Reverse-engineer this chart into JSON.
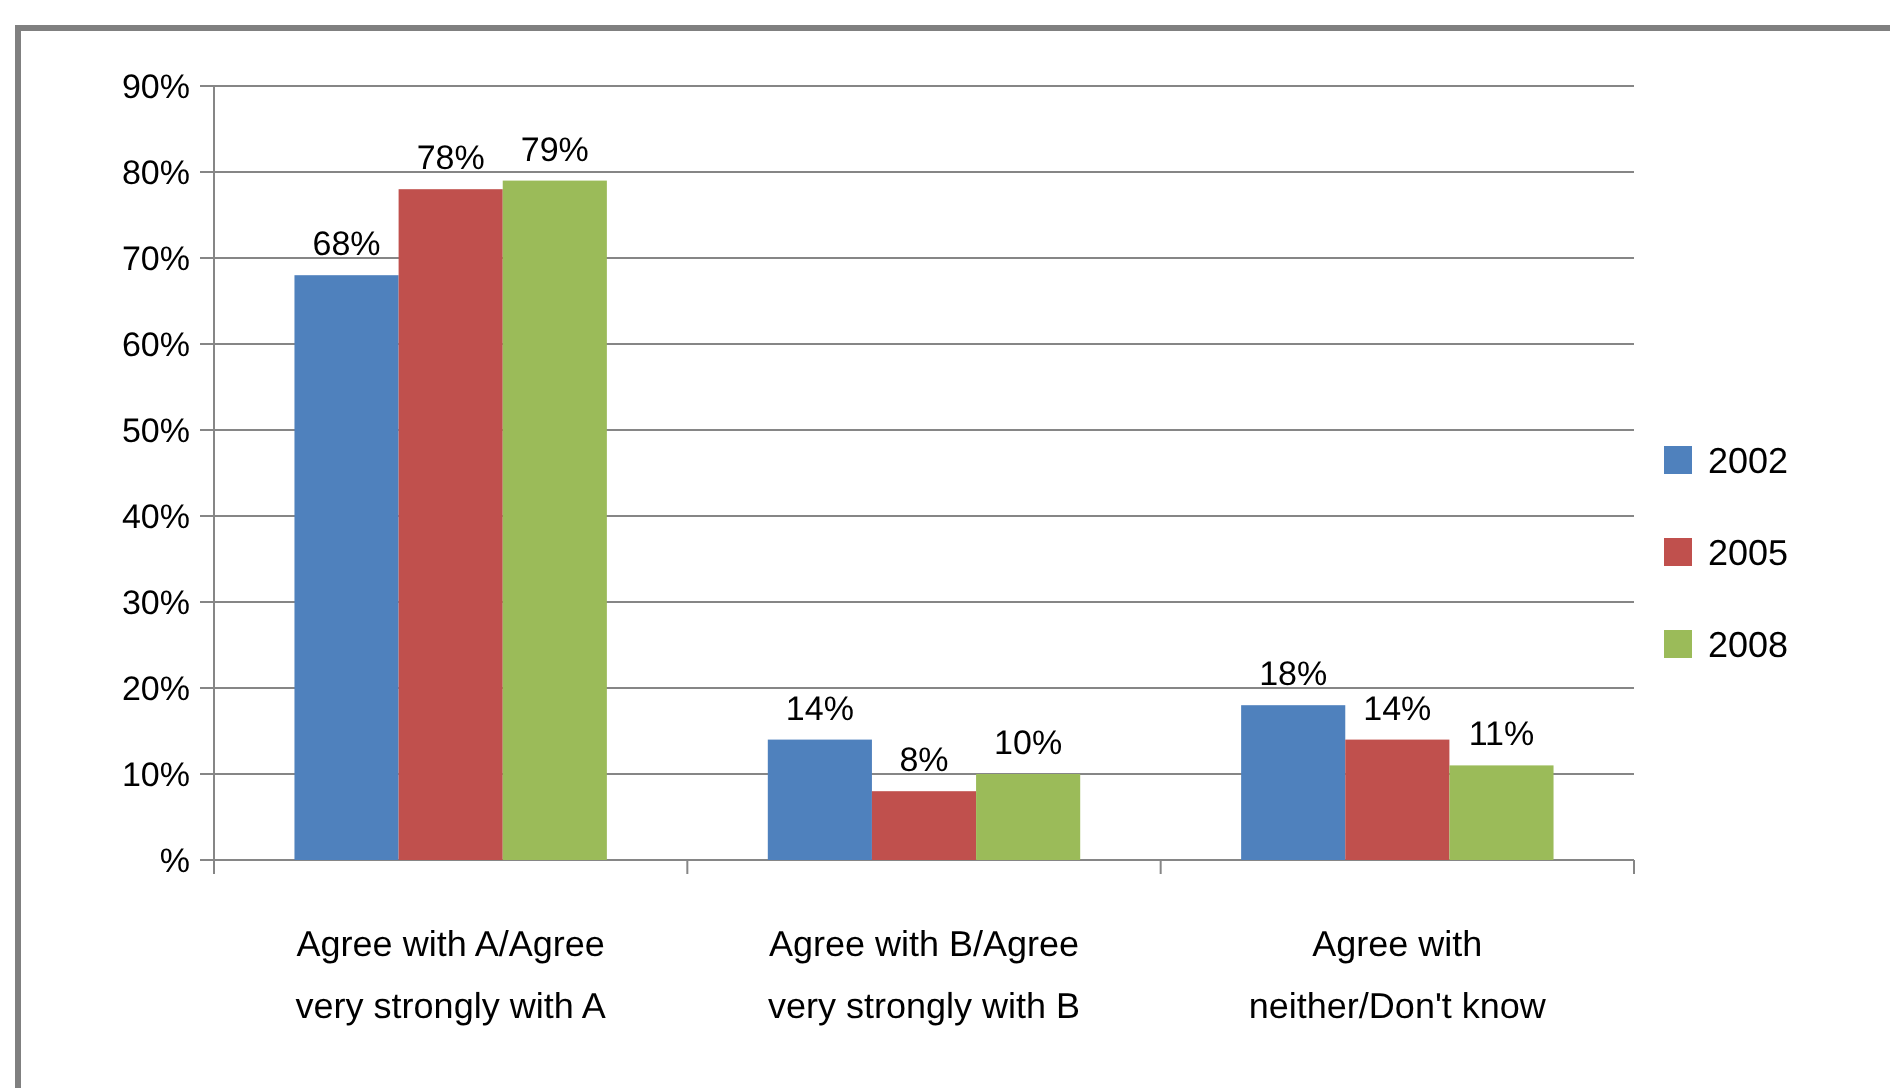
{
  "chart_data": {
    "type": "bar",
    "categories": [
      "Agree with A/Agree very strongly with A",
      "Agree with B/Agree very strongly with B",
      "Agree with neither/Don't know"
    ],
    "series": [
      {
        "name": "2002",
        "color": "#4f81bd",
        "values": [
          68,
          14,
          18
        ],
        "value_labels": [
          "68%",
          "14%",
          "18%"
        ]
      },
      {
        "name": "2005",
        "color": "#c0504d",
        "values": [
          78,
          8,
          14
        ],
        "value_labels": [
          "78%",
          "8%",
          "14%"
        ]
      },
      {
        "name": "2008",
        "color": "#9bbb59",
        "values": [
          79,
          10,
          11
        ],
        "value_labels": [
          "79%",
          "10%",
          "11%"
        ]
      }
    ],
    "ylim": [
      0,
      90
    ],
    "yticks": [
      {
        "value": 0,
        "label": "%"
      },
      {
        "value": 10,
        "label": "10%"
      },
      {
        "value": 20,
        "label": "20%"
      },
      {
        "value": 30,
        "label": "30%"
      },
      {
        "value": 40,
        "label": "40%"
      },
      {
        "value": 50,
        "label": "50%"
      },
      {
        "value": 60,
        "label": "60%"
      },
      {
        "value": 70,
        "label": "70%"
      },
      {
        "value": 80,
        "label": "80%"
      },
      {
        "value": 90,
        "label": "90%"
      }
    ],
    "grid": "y",
    "legend": "right"
  }
}
